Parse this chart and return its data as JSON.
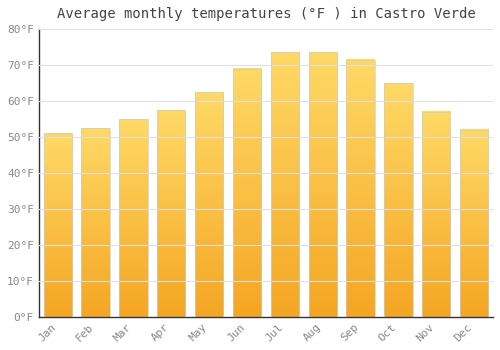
{
  "title": "Average monthly temperatures (°F ) in Castro Verde",
  "months": [
    "Jan",
    "Feb",
    "Mar",
    "Apr",
    "May",
    "Jun",
    "Jul",
    "Aug",
    "Sep",
    "Oct",
    "Nov",
    "Dec"
  ],
  "values": [
    51,
    52.5,
    55,
    57.5,
    62.5,
    69,
    73.5,
    73.5,
    71.5,
    65,
    57,
    52
  ],
  "bar_color_bottom": "#F5A623",
  "bar_color_top": "#FFD966",
  "ylim": [
    0,
    80
  ],
  "yticks": [
    0,
    10,
    20,
    30,
    40,
    50,
    60,
    70,
    80
  ],
  "background_color": "#ffffff",
  "plot_bg_color": "#ffffff",
  "grid_color": "#e0e0e0",
  "title_fontsize": 10,
  "tick_fontsize": 8,
  "font_family": "monospace"
}
